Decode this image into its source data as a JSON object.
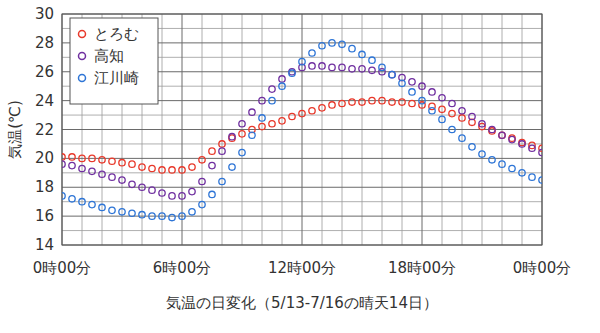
{
  "chart_data": {
    "type": "scatter",
    "x_label": "気温の日変化（5/13-7/16の晴天14日）",
    "y_label": "気温(℃)",
    "x": [
      0,
      0.5,
      1,
      1.5,
      2,
      2.5,
      3,
      3.5,
      4,
      4.5,
      5,
      5.5,
      6,
      6.5,
      7,
      7.5,
      8,
      8.5,
      9,
      9.5,
      10,
      10.5,
      11,
      11.5,
      12,
      12.5,
      13,
      13.5,
      14,
      14.5,
      15,
      15.5,
      16,
      16.5,
      17,
      17.5,
      18,
      18.5,
      19,
      19.5,
      20,
      20.5,
      21,
      21.5,
      22,
      22.5,
      23,
      23.5,
      24
    ],
    "series": [
      {
        "name": "とろむ",
        "color": "#e8392b",
        "marker": "circle",
        "values": [
          20.1,
          20.1,
          20.0,
          20.0,
          19.9,
          19.8,
          19.7,
          19.6,
          19.4,
          19.3,
          19.2,
          19.2,
          19.2,
          19.4,
          19.9,
          20.5,
          21.0,
          21.4,
          21.7,
          22.0,
          22.2,
          22.4,
          22.6,
          22.9,
          23.1,
          23.3,
          23.5,
          23.7,
          23.8,
          23.9,
          23.9,
          24.0,
          24.0,
          23.9,
          23.9,
          23.8,
          23.7,
          23.6,
          23.4,
          23.1,
          22.8,
          22.5,
          22.2,
          21.9,
          21.6,
          21.4,
          21.1,
          20.9,
          20.7
        ]
      },
      {
        "name": "高知",
        "color": "#7030a0",
        "marker": "circle",
        "values": [
          19.6,
          19.5,
          19.3,
          19.1,
          18.9,
          18.7,
          18.5,
          18.2,
          18.0,
          17.8,
          17.6,
          17.4,
          17.4,
          17.7,
          18.4,
          19.5,
          20.5,
          21.5,
          22.4,
          23.2,
          24.0,
          24.8,
          25.5,
          26.0,
          26.3,
          26.4,
          26.4,
          26.3,
          26.3,
          26.2,
          26.2,
          26.1,
          26.0,
          25.8,
          25.6,
          25.3,
          25.0,
          24.6,
          24.2,
          23.8,
          23.3,
          22.9,
          22.4,
          22.0,
          21.6,
          21.3,
          21.0,
          20.7,
          20.4
        ]
      },
      {
        "name": "江川崎",
        "color": "#2e75d6",
        "marker": "circle",
        "values": [
          17.4,
          17.2,
          17.0,
          16.8,
          16.6,
          16.4,
          16.3,
          16.2,
          16.1,
          16.0,
          16.0,
          15.9,
          16.0,
          16.3,
          16.8,
          17.5,
          18.4,
          19.4,
          20.4,
          21.6,
          22.8,
          24.0,
          25.0,
          25.9,
          26.7,
          27.3,
          27.8,
          28.0,
          27.9,
          27.6,
          27.2,
          26.8,
          26.3,
          25.8,
          25.2,
          24.6,
          24.0,
          23.3,
          22.7,
          22.0,
          21.4,
          20.8,
          20.3,
          19.9,
          19.6,
          19.3,
          19.0,
          18.7,
          18.5
        ]
      }
    ],
    "xlim": [
      0,
      24
    ],
    "xticks": [
      {
        "value": 0,
        "label": "0時00分"
      },
      {
        "value": 6,
        "label": "6時00分"
      },
      {
        "value": 12,
        "label": "12時00分"
      },
      {
        "value": 18,
        "label": "18時00分"
      },
      {
        "value": 24,
        "label": "0時00分"
      }
    ],
    "ylim": [
      14,
      30
    ],
    "yticks": [
      14,
      16,
      18,
      20,
      22,
      24,
      26,
      28,
      30
    ],
    "grid": true,
    "legend": "top-left"
  }
}
